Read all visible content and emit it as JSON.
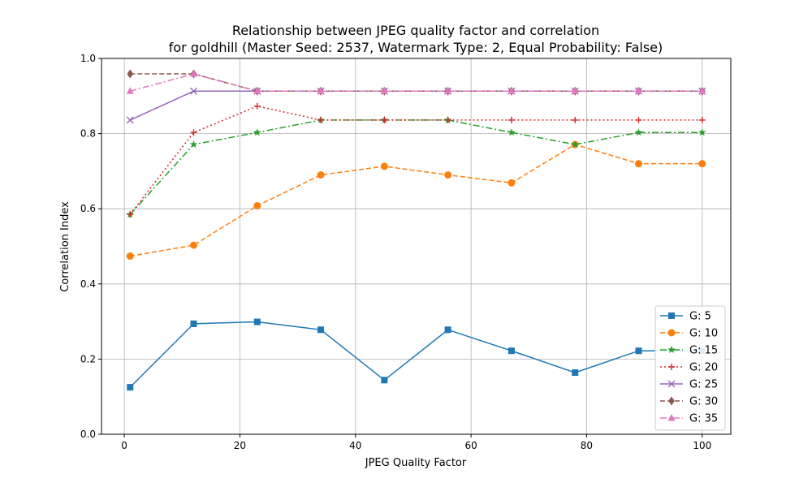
{
  "chart_data": {
    "type": "line",
    "title": "Relationship between JPEG quality factor and correlation",
    "subtitle": "for goldhill (Master Seed: 2537, Watermark Type: 2, Equal Probability: False)",
    "xlabel": "JPEG Quality Factor",
    "ylabel": "Correlation Index",
    "xlim": [
      -3.95,
      104.95
    ],
    "ylim": [
      0.0,
      1.0
    ],
    "xticks": [
      0,
      20,
      40,
      60,
      80,
      100
    ],
    "yticks": [
      0.0,
      0.2,
      0.4,
      0.6,
      0.8,
      1.0
    ],
    "xtick_labels": [
      "0",
      "20",
      "40",
      "60",
      "80",
      "100"
    ],
    "ytick_labels": [
      "0.0",
      "0.2",
      "0.4",
      "0.6",
      "0.8",
      "1.0"
    ],
    "grid": true,
    "legend_position": "lower-right",
    "x": [
      1,
      12,
      23,
      34,
      45,
      56,
      67,
      78,
      89,
      100
    ],
    "series": [
      {
        "name": "G: 5",
        "color": "#1f77b4",
        "marker": "square",
        "dash": "solid",
        "values": [
          0.125,
          0.294,
          0.299,
          0.278,
          0.144,
          0.278,
          0.222,
          0.164,
          0.222,
          0.222
        ]
      },
      {
        "name": "G: 10",
        "color": "#ff7f0e",
        "marker": "circle",
        "dash": "dashed",
        "values": [
          0.474,
          0.503,
          0.608,
          0.69,
          0.713,
          0.69,
          0.669,
          0.771,
          0.72,
          0.72
        ]
      },
      {
        "name": "G: 15",
        "color": "#2ca02c",
        "marker": "star",
        "dash": "dashdot",
        "values": [
          0.585,
          0.771,
          0.803,
          0.836,
          0.836,
          0.836,
          0.803,
          0.771,
          0.803,
          0.803
        ]
      },
      {
        "name": "G: 20",
        "color": "#d62728",
        "marker": "plus",
        "dash": "dotted",
        "values": [
          0.585,
          0.803,
          0.873,
          0.836,
          0.836,
          0.836,
          0.836,
          0.836,
          0.836,
          0.836
        ]
      },
      {
        "name": "G: 25",
        "color": "#9467bd",
        "marker": "x",
        "dash": "solid",
        "values": [
          0.836,
          0.913,
          0.913,
          0.913,
          0.913,
          0.913,
          0.913,
          0.913,
          0.913,
          0.913
        ]
      },
      {
        "name": "G: 30",
        "color": "#8c564b",
        "marker": "diamond",
        "dash": "dashed",
        "values": [
          0.959,
          0.959,
          0.913,
          0.913,
          0.913,
          0.913,
          0.913,
          0.913,
          0.913,
          0.913
        ]
      },
      {
        "name": "G: 35",
        "color": "#e377c2",
        "marker": "triangle",
        "dash": "dashdot",
        "values": [
          0.913,
          0.959,
          0.913,
          0.913,
          0.913,
          0.913,
          0.913,
          0.913,
          0.913,
          0.913
        ]
      }
    ]
  }
}
